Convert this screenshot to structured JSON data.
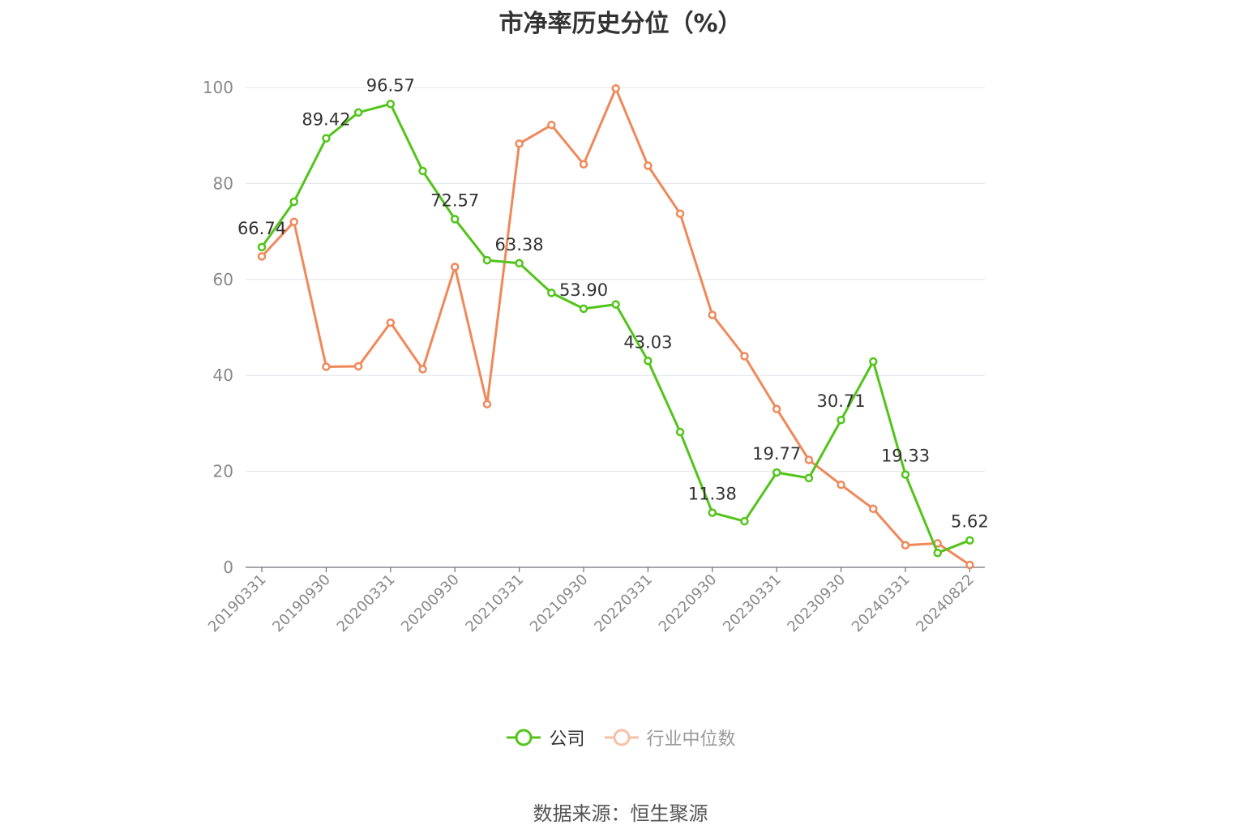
{
  "chart_data": {
    "type": "line",
    "title": "市净率历史分位（%）",
    "xlabel": "",
    "ylabel": "",
    "ylim": [
      0,
      100
    ],
    "y_ticks": [
      0,
      20,
      40,
      60,
      80,
      100
    ],
    "grid": true,
    "legend_position": "bottom",
    "x": [
      "20190331",
      "20190630",
      "20190930",
      "20191231",
      "20200331",
      "20200630",
      "20200930",
      "20201231",
      "20210331",
      "20210630",
      "20210930",
      "20211231",
      "20220331",
      "20220630",
      "20220930",
      "20221231",
      "20230331",
      "20230630",
      "20230930",
      "20231231",
      "20240331",
      "20240630",
      "20240822"
    ],
    "x_tick_labels": [
      "20190331",
      "20190930",
      "20200331",
      "20200930",
      "20210331",
      "20210930",
      "20220331",
      "20220930",
      "20230331",
      "20230930",
      "20240331",
      "20240822"
    ],
    "series": [
      {
        "name": "公司",
        "color": "#52c41a",
        "values": [
          66.74,
          76.2,
          89.42,
          94.8,
          96.57,
          82.6,
          72.57,
          64.0,
          63.38,
          57.2,
          53.9,
          54.8,
          43.03,
          28.2,
          11.38,
          9.6,
          19.77,
          18.6,
          30.71,
          42.9,
          19.33,
          3.0,
          5.62
        ],
        "labels": [
          "66.74",
          "",
          "89.42",
          "",
          "96.57",
          "",
          "72.57",
          "",
          "63.38",
          "",
          "53.90",
          "",
          "43.03",
          "",
          "11.38",
          "",
          "19.77",
          "",
          "30.71",
          "",
          "19.33",
          "",
          "5.62"
        ]
      },
      {
        "name": "行业中位数",
        "color": "#f0885a",
        "values": [
          64.8,
          72.0,
          41.8,
          41.9,
          51.0,
          41.3,
          62.6,
          34.0,
          88.3,
          92.2,
          84.0,
          99.8,
          83.7,
          73.7,
          52.6,
          44.0,
          33.0,
          22.4,
          17.2,
          12.2,
          4.6,
          5.0,
          0.5
        ]
      }
    ]
  },
  "source_text": "数据来源：恒生聚源"
}
